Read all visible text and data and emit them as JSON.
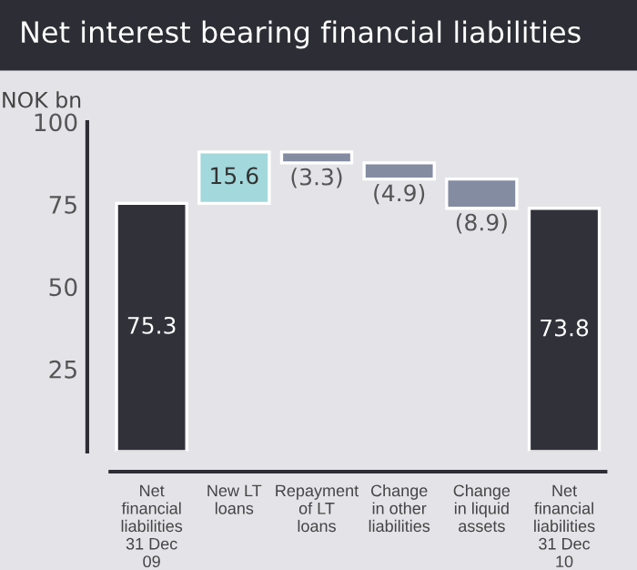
{
  "chart_data": {
    "type": "bar",
    "title": "Net interest bearing financial liabilities",
    "ylabel": "NOK bn",
    "categories": [
      "Net financial liabilities 31 Dec 09",
      "New LT loans",
      "Repayment of LT loans",
      "Change in other liabilities",
      "Change in liquid assets",
      "Net financial liabilities 31 Dec 10"
    ],
    "values": [
      75.3,
      15.6,
      -3.3,
      -4.9,
      -8.9,
      73.8
    ],
    "base": [
      0,
      75.3,
      90.9,
      87.6,
      82.7,
      0
    ],
    "colors": [
      "#31313a",
      "#a3d8dc",
      "#848ca2",
      "#848ca2",
      "#848ca2",
      "#31313a"
    ],
    "value_labels": [
      "75.3",
      "15.6",
      "(3.3)",
      "(4.9)",
      "(8.9)",
      "73.8"
    ],
    "ylim": [
      0,
      100
    ],
    "yticks": [
      25,
      50,
      75,
      100
    ],
    "grid": false,
    "legend": false
  }
}
